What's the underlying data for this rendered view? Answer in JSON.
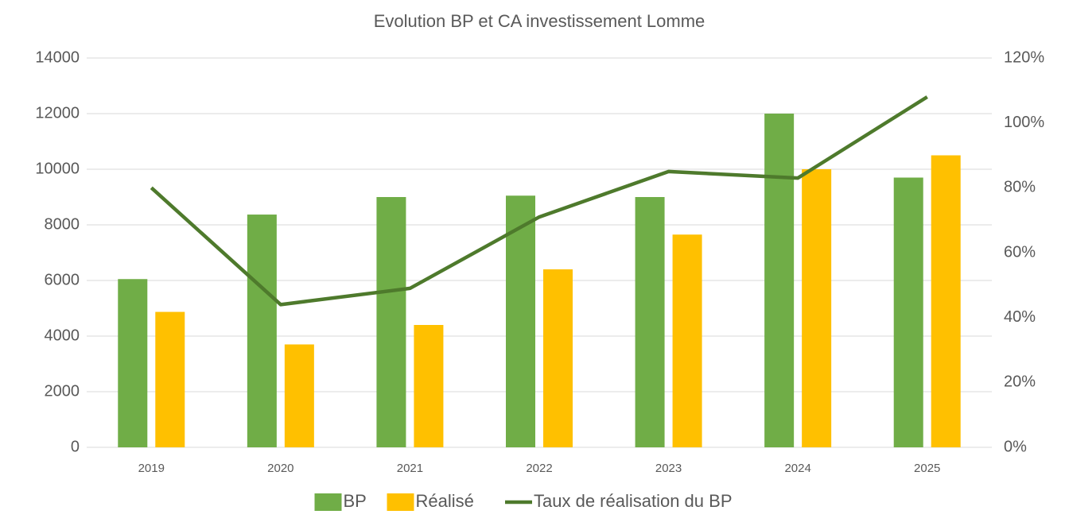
{
  "chart_data": {
    "type": "bar_line",
    "title": "Evolution BP et CA investissement Lomme",
    "categories": [
      "2019",
      "2020",
      "2021",
      "2022",
      "2023",
      "2024",
      "2025"
    ],
    "series": [
      {
        "name": "BP",
        "color": "#70ad47",
        "values": [
          6050,
          8370,
          9000,
          9050,
          9000,
          12000,
          9700
        ]
      },
      {
        "name": "Réalisé",
        "color": "#ffc000",
        "values": [
          4870,
          3700,
          4400,
          6400,
          7650,
          10000,
          10500
        ]
      },
      {
        "name": "Taux de réalisation du BP",
        "color": "#4e7a2c",
        "type": "line",
        "axis": "y2",
        "values": [
          80,
          44,
          49,
          71,
          85,
          83,
          108
        ]
      }
    ],
    "ylim": [
      0,
      14000
    ],
    "yticks": [
      0,
      2000,
      4000,
      6000,
      8000,
      10000,
      12000,
      14000
    ],
    "y2lim": [
      0,
      120
    ],
    "y2ticks": [
      {
        "value": 0,
        "label": "0%"
      },
      {
        "value": 20,
        "label": "20%"
      },
      {
        "value": 40,
        "label": "40%"
      },
      {
        "value": 60,
        "label": "60%"
      },
      {
        "value": 80,
        "label": "80%"
      },
      {
        "value": 100,
        "label": "100%"
      },
      {
        "value": 120,
        "label": "120%"
      }
    ],
    "grid": true,
    "legend": "bottom"
  }
}
